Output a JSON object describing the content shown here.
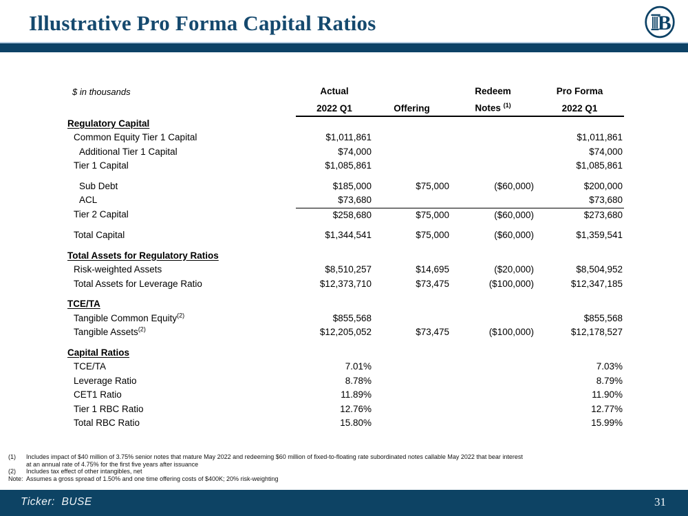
{
  "page": {
    "title": "Illustrative Pro Forma Capital Ratios",
    "footer": {
      "ticker": "Ticker:  BUSE",
      "page_number": "31"
    },
    "colors": {
      "brand_navy": "#0d4266",
      "title_navy": "#15496e",
      "accent_light_blue": "#b7cde1",
      "footer_navy": "#0d4364"
    },
    "logo_name": "busey-pillar-b-logo"
  },
  "table": {
    "units_label": "$ in thousands",
    "columns": [
      {
        "line1": "Actual",
        "line2": "2022 Q1",
        "line2_sup": ""
      },
      {
        "line1": "",
        "line2": "Offering",
        "line2_sup": ""
      },
      {
        "line1": "Redeem",
        "line2": "Notes ",
        "line2_sup": "(1)"
      },
      {
        "line1": "Pro Forma",
        "line2": "2022 Q1",
        "line2_sup": ""
      }
    ],
    "rows": [
      {
        "type": "section",
        "label": "Regulatory Capital"
      },
      {
        "type": "data",
        "indent": 1,
        "label": "Common Equity Tier 1 Capital",
        "values": [
          "$1,011,861",
          "",
          "",
          "$1,011,861"
        ]
      },
      {
        "type": "data",
        "indent": 2,
        "label": "Additional Tier 1 Capital",
        "values": [
          "$74,000",
          "",
          "",
          "$74,000"
        ]
      },
      {
        "type": "data",
        "indent": 1,
        "label": "Tier 1 Capital",
        "values": [
          "$1,085,861",
          "",
          "",
          "$1,085,861"
        ]
      },
      {
        "type": "spacer"
      },
      {
        "type": "data",
        "indent": 2,
        "label": "Sub Debt",
        "values": [
          "$185,000",
          "$75,000",
          "($60,000)",
          "$200,000"
        ]
      },
      {
        "type": "data",
        "indent": 2,
        "label": "ACL",
        "values": [
          "$73,680",
          "",
          "",
          "$73,680"
        ],
        "underline_values": true
      },
      {
        "type": "data",
        "indent": 1,
        "label": "Tier 2 Capital",
        "values": [
          "$258,680",
          "$75,000",
          "($60,000)",
          "$273,680"
        ]
      },
      {
        "type": "spacer"
      },
      {
        "type": "data",
        "indent": 1,
        "label": "Total Capital",
        "values": [
          "$1,344,541",
          "$75,000",
          "($60,000)",
          "$1,359,541"
        ]
      },
      {
        "type": "spacer"
      },
      {
        "type": "section",
        "label": "Total Assets for Regulatory Ratios"
      },
      {
        "type": "data",
        "indent": 1,
        "label": "Risk-weighted Assets",
        "values": [
          "$8,510,257",
          "$14,695",
          "($20,000)",
          "$8,504,952"
        ]
      },
      {
        "type": "data",
        "indent": 1,
        "label": "Total Assets for Leverage Ratio",
        "values": [
          "$12,373,710",
          "$73,475",
          "($100,000)",
          "$12,347,185"
        ]
      },
      {
        "type": "spacer"
      },
      {
        "type": "section",
        "label": "TCE/TA"
      },
      {
        "type": "data",
        "indent": 1,
        "label": "Tangible Common Equity",
        "label_sup": "(2)",
        "values": [
          "$855,568",
          "",
          "",
          "$855,568"
        ]
      },
      {
        "type": "data",
        "indent": 1,
        "label": "Tangible Assets",
        "label_sup": "(2)",
        "values": [
          "$12,205,052",
          "$73,475",
          "($100,000)",
          "$12,178,527"
        ]
      },
      {
        "type": "spacer"
      },
      {
        "type": "section",
        "label": "Capital Ratios"
      },
      {
        "type": "data",
        "indent": 1,
        "label": "TCE/TA",
        "values": [
          "7.01%",
          "",
          "",
          "7.03%"
        ]
      },
      {
        "type": "data",
        "indent": 1,
        "label": "Leverage Ratio",
        "values": [
          "8.78%",
          "",
          "",
          "8.79%"
        ]
      },
      {
        "type": "data",
        "indent": 1,
        "label": "CET1 Ratio",
        "values": [
          "11.89%",
          "",
          "",
          "11.90%"
        ]
      },
      {
        "type": "data",
        "indent": 1,
        "label": "Tier 1 RBC Ratio",
        "values": [
          "12.76%",
          "",
          "",
          "12.77%"
        ]
      },
      {
        "type": "data",
        "indent": 1,
        "label": "Total RBC Ratio",
        "values": [
          "15.80%",
          "",
          "",
          "15.99%"
        ]
      }
    ]
  },
  "footnotes": [
    {
      "marker": "(1)",
      "text": "Includes impact of $40 million of 3.75% senior notes that mature May 2022 and redeeming $60 million of fixed-to-floating rate subordinated notes callable May 2022 that bear interest at an annual rate of 4.75% for the first five years after issuance"
    },
    {
      "marker": "(2)",
      "text": "Includes tax effect of other intangibles, net"
    },
    {
      "marker": "Note:",
      "text": "Assumes a gross spread of 1.50% and one time offering costs of $400K; 20% risk-weighting"
    }
  ]
}
